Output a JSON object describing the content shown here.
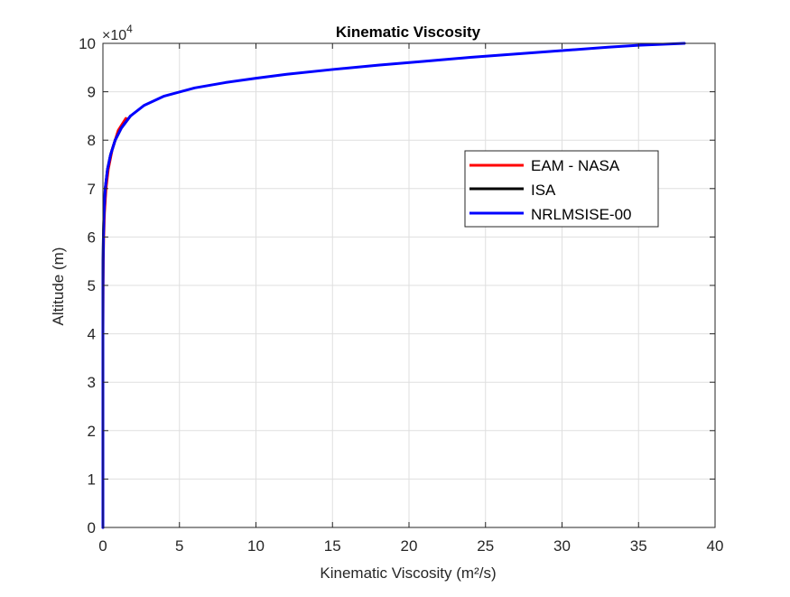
{
  "figure": {
    "title": "Kinematic Viscosity"
  },
  "chart_data": {
    "type": "line",
    "title": "Kinematic Viscosity",
    "xlabel": "Kinematic Viscosity (m²/s)",
    "ylabel": "Altitude (m)",
    "xlim": [
      0,
      40
    ],
    "ylim": [
      0,
      100000
    ],
    "y_exponent_label": "×10",
    "y_exponent_value": "4",
    "x_ticks": [
      0,
      5,
      10,
      15,
      20,
      25,
      30,
      35,
      40
    ],
    "x_tick_labels": [
      "0",
      "5",
      "10",
      "15",
      "20",
      "25",
      "30",
      "35",
      "40"
    ],
    "y_ticks": [
      0,
      10000,
      20000,
      30000,
      40000,
      50000,
      60000,
      70000,
      80000,
      90000,
      100000
    ],
    "y_tick_labels": [
      "0",
      "1",
      "2",
      "3",
      "4",
      "5",
      "6",
      "7",
      "8",
      "9",
      "10"
    ],
    "grid": true,
    "legend_position": "upper-right, inside axes",
    "series": [
      {
        "name": "EAM - NASA",
        "color": "#ff0000",
        "x": [
          0.0,
          0.0,
          0.0,
          0.0,
          0.0,
          0.01,
          0.02,
          0.05,
          0.1,
          0.2,
          0.35,
          0.6,
          1.0,
          1.5
        ],
        "y": [
          0,
          10000,
          20000,
          30000,
          40000,
          50000,
          55000,
          60000,
          65000,
          70000,
          74000,
          78000,
          82000,
          84500
        ]
      },
      {
        "name": "ISA",
        "color": "#000000",
        "x": [
          0.0,
          0.0,
          0.0,
          0.0,
          0.0,
          0.003,
          0.01,
          0.03,
          0.07,
          0.15,
          0.3,
          0.5,
          0.8,
          1.2,
          1.8
        ],
        "y": [
          0,
          10000,
          20000,
          30000,
          40000,
          50000,
          55000,
          60000,
          65000,
          70000,
          74000,
          77000,
          80000,
          82500,
          85000
        ]
      },
      {
        "name": "NRLMSISE-00",
        "color": "#0000ff",
        "x": [
          0.0,
          0.0,
          0.0,
          0.0,
          0.0,
          0.003,
          0.01,
          0.03,
          0.07,
          0.15,
          0.3,
          0.5,
          0.8,
          1.2,
          1.8,
          2.7,
          4.0,
          6.0,
          8.0,
          10.0,
          12.0,
          15.0,
          18.0,
          21.0,
          24.0,
          27.0,
          30.0,
          33.0,
          35.0,
          38.0
        ],
        "y": [
          0,
          10000,
          20000,
          30000,
          40000,
          50000,
          55000,
          60000,
          65000,
          70000,
          74000,
          77000,
          80000,
          82500,
          85000,
          87200,
          89100,
          90800,
          91900,
          92800,
          93600,
          94600,
          95500,
          96300,
          97100,
          97800,
          98500,
          99200,
          99600,
          100000
        ]
      }
    ]
  }
}
